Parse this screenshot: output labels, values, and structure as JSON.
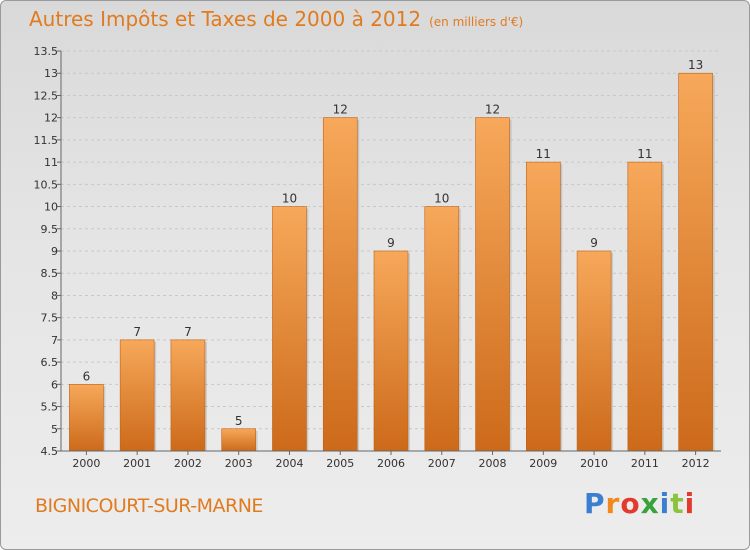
{
  "title": "Autres Impôts et Taxes de 2000 à 2012",
  "unit": "(en milliers d'€)",
  "commune": "BIGNICOURT-SUR-MARNE",
  "logo": {
    "text": "Proxiti",
    "letters": [
      "P",
      "r",
      "o",
      "x",
      "i",
      "t",
      "i"
    ],
    "colors": [
      "#3a7fd0",
      "#f08a1c",
      "#e23b2e",
      "#39a33b",
      "#3a7fd0",
      "#8ac43f",
      "#e23b2e"
    ]
  },
  "colors": {
    "accent": "#e07b1f",
    "bar_top": "#f7a85a",
    "bar_bottom": "#cc6a1a"
  },
  "chart_data": {
    "type": "bar",
    "categories": [
      "2000",
      "2001",
      "2002",
      "2003",
      "2004",
      "2005",
      "2006",
      "2007",
      "2008",
      "2009",
      "2010",
      "2011",
      "2012"
    ],
    "values": [
      6,
      7,
      7,
      5,
      10,
      12,
      9,
      10,
      12,
      11,
      9,
      11,
      13
    ],
    "value_labels": [
      "6",
      "7",
      "7",
      "5",
      "10",
      "12",
      "9",
      "10",
      "12",
      "11",
      "9",
      "11",
      "13"
    ],
    "ylim": [
      4.5,
      13.5
    ],
    "yticks": [
      "4.5",
      "5",
      "5.5",
      "6",
      "6.5",
      "7",
      "7.5",
      "8",
      "8.5",
      "9",
      "9.5",
      "10",
      "10.5",
      "11",
      "11.5",
      "12",
      "12.5",
      "13",
      "13.5"
    ],
    "grid": true,
    "xlabel": "",
    "ylabel": ""
  }
}
